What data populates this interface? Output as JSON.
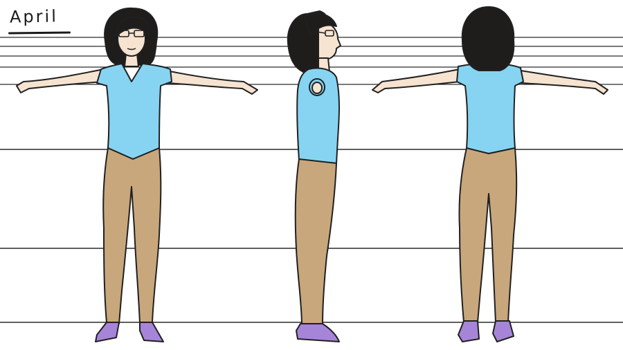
{
  "title": "April",
  "colors": {
    "shirt": "#86d4f2",
    "pants": "#c8a77c",
    "shoes": "#a685d9",
    "skin": "#f6e3d0",
    "hair": "#1f1c1c",
    "lines": "#202020"
  },
  "views": [
    "front-view",
    "side-view",
    "back-view"
  ]
}
